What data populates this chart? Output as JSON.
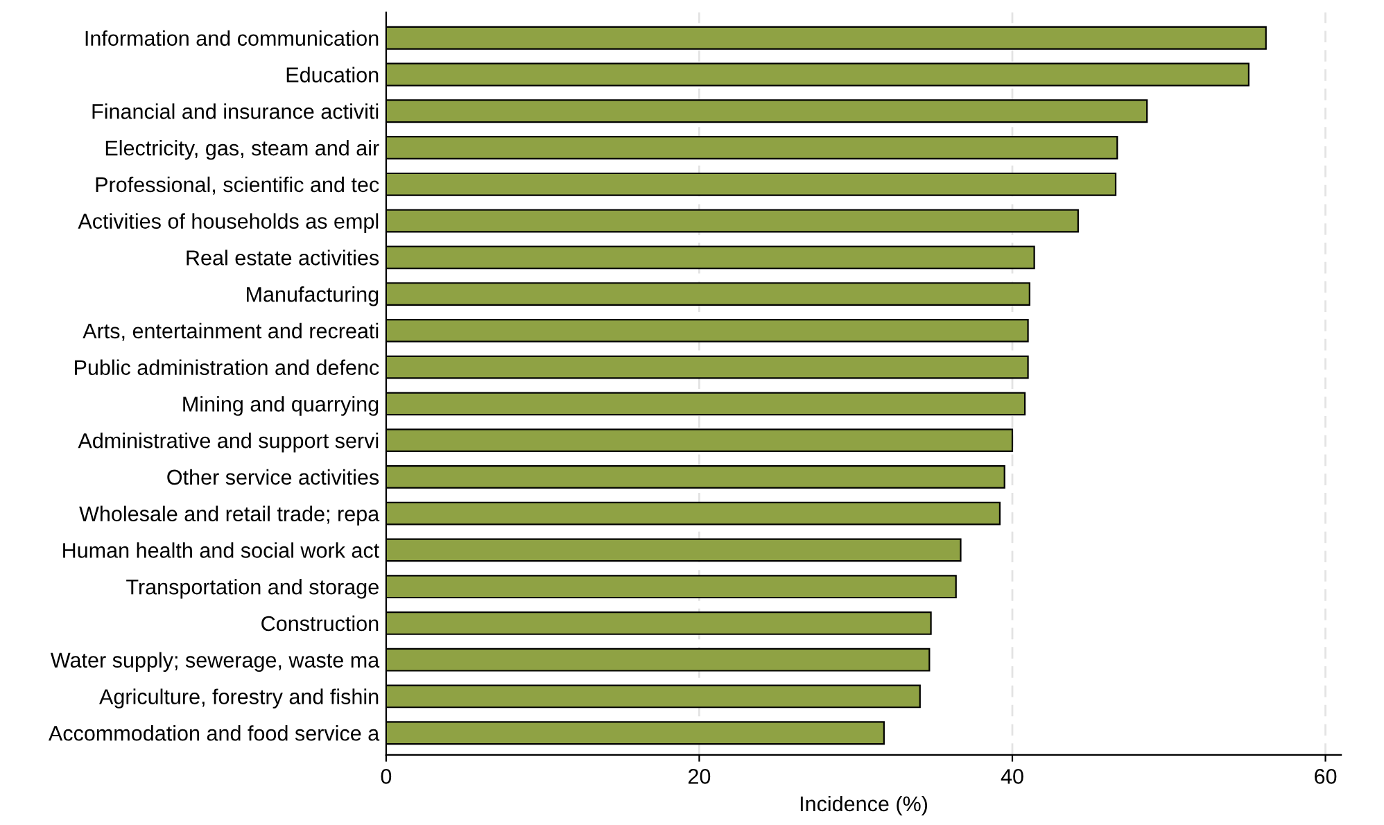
{
  "chart_data": {
    "type": "bar",
    "orientation": "horizontal",
    "xlabel": "Incidence (%)",
    "categories": [
      "Information and communication",
      "Education",
      "Financial and insurance activiti",
      "Electricity, gas, steam and air",
      "Professional, scientific and tec",
      "Activities of households as empl",
      "Real estate activities",
      "Manufacturing",
      "Arts, entertainment and recreati",
      "Public administration and defenc",
      "Mining and quarrying",
      "Administrative and support servi",
      "Other service activities",
      "Wholesale and retail trade; repa",
      "Human health and social work act",
      "Transportation and storage",
      "Construction",
      "Water supply; sewerage, waste ma",
      "Agriculture, forestry and fishin",
      "Accommodation and food service a"
    ],
    "values": [
      56.2,
      55.1,
      48.6,
      46.7,
      46.6,
      44.2,
      41.4,
      41.1,
      41.0,
      41.0,
      40.8,
      40.0,
      39.5,
      39.2,
      36.7,
      36.4,
      34.8,
      34.7,
      34.1,
      31.8
    ],
    "color": "#8fa244",
    "xlim": [
      0,
      61
    ],
    "xticks": [
      0,
      20,
      40,
      60
    ],
    "grid": "x"
  }
}
